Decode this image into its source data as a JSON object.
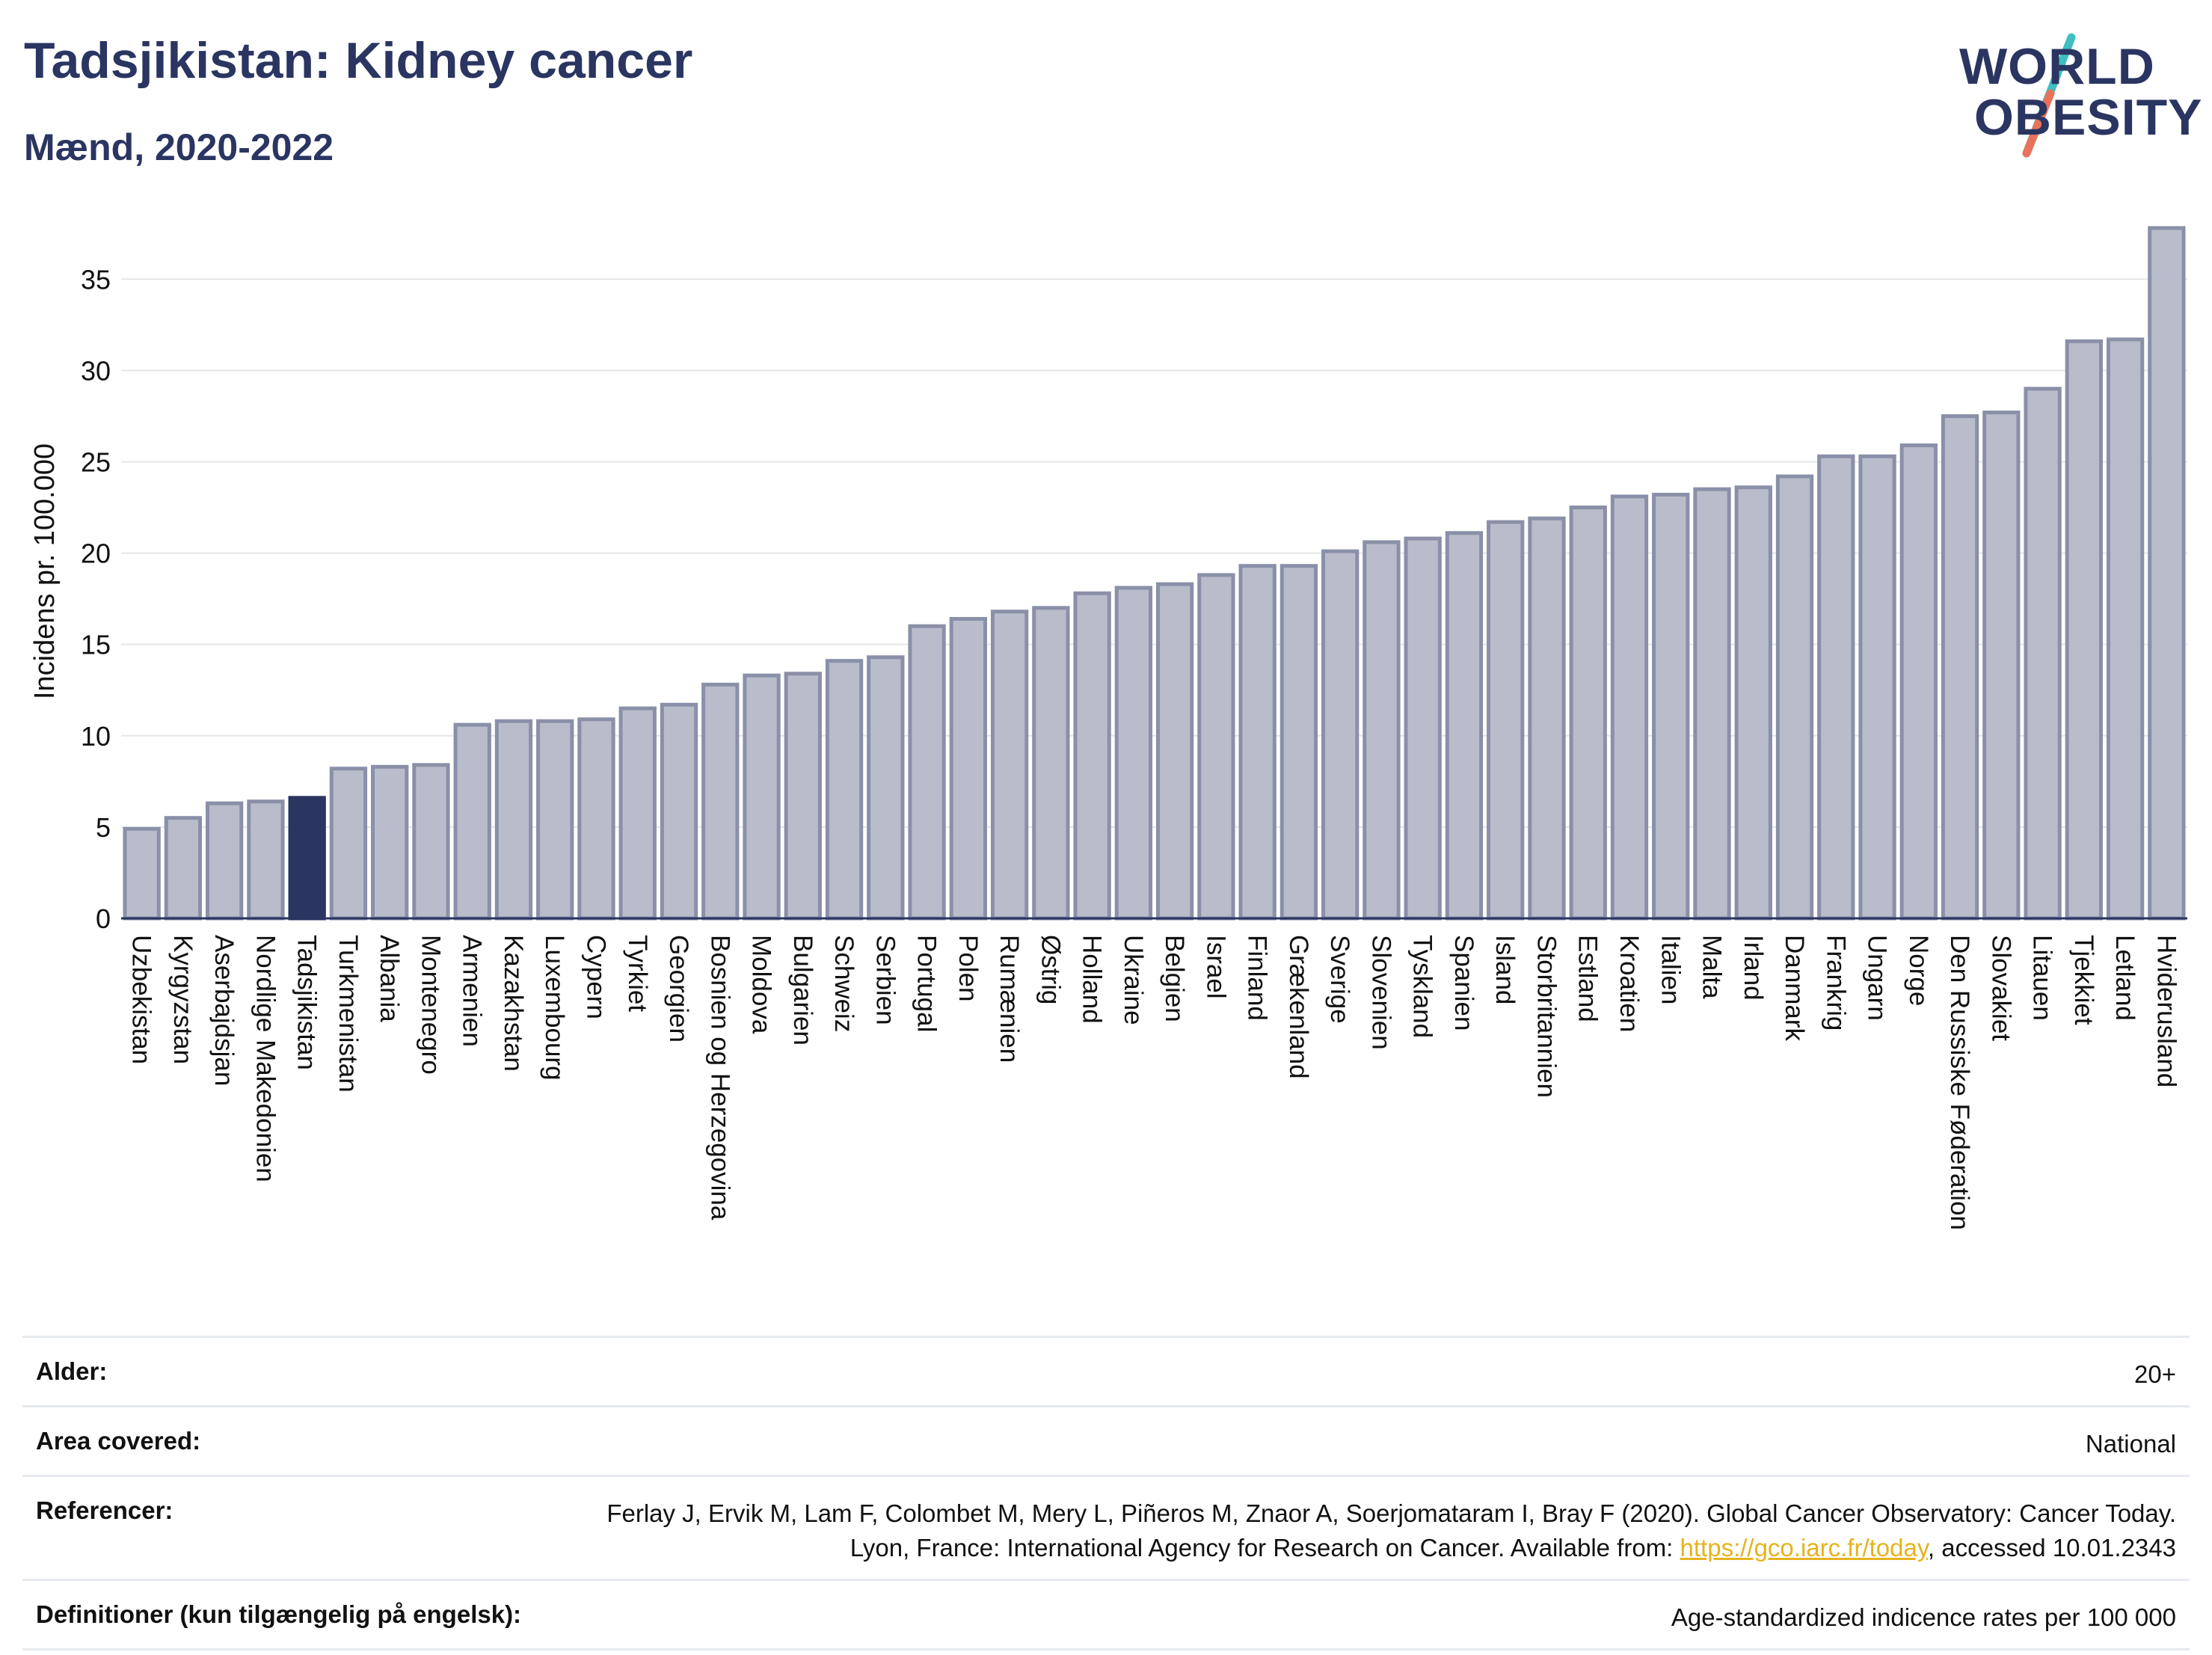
{
  "header": {
    "title": "Tadsjikistan: Kidney cancer",
    "subtitle": "Mænd, 2020-2022",
    "logo_line1": "WORLD",
    "logo_line2": "OBESITY"
  },
  "chart_data": {
    "type": "bar",
    "ylabel": "Incidens pr. 100.000",
    "ylim": [
      0,
      38
    ],
    "yticks": [
      0,
      5,
      10,
      15,
      20,
      25,
      30,
      35
    ],
    "grid": true,
    "highlight": "Tadsjikistan",
    "colors": {
      "bar": "#b8bccb",
      "bar_edge": "#8a90a8",
      "highlight": "#2a3561",
      "grid": "#e3e6ea"
    },
    "categories": [
      "Uzbekistan",
      "Kyrgyzstan",
      "Aserbajdsjan",
      "Nordlige Makedonien",
      "Tadsjikistan",
      "Turkmenistan",
      "Albania",
      "Montenegro",
      "Armenien",
      "Kazakhstan",
      "Luxembourg",
      "Cypern",
      "Tyrkiet",
      "Georgien",
      "Bosnien og Herzegovina",
      "Moldova",
      "Bulgarien",
      "Schweiz",
      "Serbien",
      "Portugal",
      "Polen",
      "Rumænien",
      "Østrig",
      "Holland",
      "Ukraine",
      "Belgien",
      "Israel",
      "Finland",
      "Grækenland",
      "Sverige",
      "Slovenien",
      "Tyskland",
      "Spanien",
      "Island",
      "Storbritannien",
      "Estland",
      "Kroatien",
      "Italien",
      "Malta",
      "Irland",
      "Danmark",
      "Frankrig",
      "Ungarn",
      "Norge",
      "Den Russiske Føderation",
      "Slovakiet",
      "Litauen",
      "Tjekkiet",
      "Letland",
      "Hviderusland"
    ],
    "values": [
      4.9,
      5.5,
      6.3,
      6.4,
      6.6,
      8.2,
      8.3,
      8.4,
      10.6,
      10.8,
      10.8,
      10.9,
      11.5,
      11.7,
      12.8,
      13.3,
      13.4,
      14.1,
      14.3,
      16.0,
      16.4,
      16.8,
      17.0,
      17.8,
      18.1,
      18.3,
      18.8,
      19.3,
      19.3,
      20.1,
      20.6,
      20.8,
      21.1,
      21.7,
      21.9,
      22.5,
      23.1,
      23.2,
      23.5,
      23.6,
      24.2,
      25.3,
      25.3,
      25.9,
      27.5,
      27.7,
      29.0,
      31.6,
      31.7,
      37.8
    ]
  },
  "meta": {
    "age_label": "Alder:",
    "age_value": "20+",
    "area_label": "Area covered:",
    "area_value": "National",
    "ref_label": "Referencer:",
    "ref_text_1": "Ferlay J, Ervik M, Lam F, Colombet M, Mery L, Piñeros M, Znaor A, Soerjomataram I, Bray F (2020). Global Cancer Observatory: Cancer Today. Lyon, France: International Agency for Research on Cancer. Available from: ",
    "ref_link": "https://gco.iarc.fr/today",
    "ref_text_2": ", accessed 10.01.2343",
    "def_label": "Definitioner (kun tilgængelig på engelsk):",
    "def_value": "Age-standardized indicence rates per 100 000"
  }
}
